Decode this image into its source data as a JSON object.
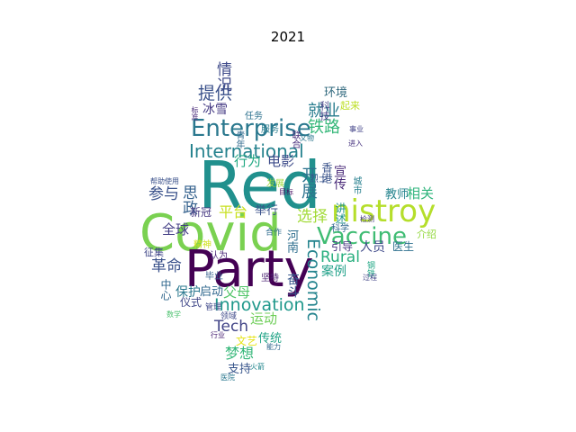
{
  "title": "2021",
  "words": [
    {
      "text": "Red",
      "color": "#21908d"
    },
    {
      "text": "Covid",
      "color": "#7ad151"
    },
    {
      "text": "Party",
      "color": "#440154"
    },
    {
      "text": "nistroy",
      "color": "#b5de2b"
    },
    {
      "text": "Enterprise",
      "color": "#2a788e"
    },
    {
      "text": "Vaccine",
      "color": "#3fbc73"
    },
    {
      "text": "International",
      "color": "#26828e"
    },
    {
      "text": "Innovation",
      "color": "#1f988b"
    },
    {
      "text": "Economic",
      "color": "#25848e"
    },
    {
      "text": "Tech",
      "color": "#414487"
    },
    {
      "text": "Rural",
      "color": "#29af7f"
    },
    {
      "text": "提供",
      "color": "#3b528b"
    },
    {
      "text": "情况",
      "color": "#3e4a89"
    },
    {
      "text": "就业",
      "color": "#287d8e"
    },
    {
      "text": "铁路",
      "color": "#35b779"
    },
    {
      "text": "环境",
      "color": "#30697e"
    },
    {
      "text": "冰雪",
      "color": "#443a83"
    },
    {
      "text": "电影",
      "color": "#3e4c8a"
    },
    {
      "text": "行为",
      "color": "#23a983"
    },
    {
      "text": "开展",
      "color": "#2c728e"
    },
    {
      "text": "宣传",
      "color": "#482878"
    },
    {
      "text": "选择",
      "color": "#a2da37"
    },
    {
      "text": "平台",
      "color": "#c8e020"
    },
    {
      "text": "举行",
      "color": "#3b528b"
    },
    {
      "text": "参与",
      "color": "#3b528b"
    },
    {
      "text": "思政",
      "color": "#34618d"
    },
    {
      "text": "新冠",
      "color": "#453781"
    },
    {
      "text": "全球",
      "color": "#433e85"
    },
    {
      "text": "革命",
      "color": "#3b528b"
    },
    {
      "text": "保护",
      "color": "#2a788e"
    },
    {
      "text": "启动",
      "color": "#31688e"
    },
    {
      "text": "父母",
      "color": "#52c569"
    },
    {
      "text": "运动",
      "color": "#6ece58"
    },
    {
      "text": "奋斗",
      "color": "#38588c"
    },
    {
      "text": "相关",
      "color": "#2fb47c"
    },
    {
      "text": "教师",
      "color": "#25848e"
    },
    {
      "text": "人员",
      "color": "#3e4989"
    },
    {
      "text": "医生",
      "color": "#2d708e"
    },
    {
      "text": "介绍",
      "color": "#94d840"
    },
    {
      "text": "案例",
      "color": "#1fa088"
    },
    {
      "text": "引导",
      "color": "#463480"
    },
    {
      "text": "梦想",
      "color": "#35b779"
    },
    {
      "text": "传统",
      "color": "#20a386"
    },
    {
      "text": "支持",
      "color": "#39568c"
    },
    {
      "text": "仪式",
      "color": "#3f4788"
    },
    {
      "text": "中心",
      "color": "#31688e"
    },
    {
      "text": "河南",
      "color": "#2e6e8e"
    },
    {
      "text": "讲述",
      "color": "#20928c"
    },
    {
      "text": "香港",
      "color": "#3a538b"
    },
    {
      "text": "科技",
      "color": "#433d84"
    },
    {
      "text": "起来",
      "color": "#bddf26"
    },
    {
      "text": "城市",
      "color": "#277f8e"
    },
    {
      "text": "征集",
      "color": "#404688"
    },
    {
      "text": "任务",
      "color": "#2c718e"
    },
    {
      "text": "毕业",
      "color": "#35608d"
    },
    {
      "text": "认为",
      "color": "#482576"
    },
    {
      "text": "坚持",
      "color": "#481f70"
    },
    {
      "text": "合作",
      "color": "#2f6c8e"
    },
    {
      "text": "目标",
      "color": "#471063"
    },
    {
      "text": "帮助",
      "color": "#3b518b"
    },
    {
      "text": "使用",
      "color": "#3b528b"
    },
    {
      "text": "文艺",
      "color": "#e5e419"
    },
    {
      "text": "科学",
      "color": "#31678e"
    },
    {
      "text": "烈士",
      "color": "#39558c"
    },
    {
      "text": "联合",
      "color": "#472d7b"
    },
    {
      "text": "事业",
      "color": "#414287"
    },
    {
      "text": "文物",
      "color": "#2a768e"
    },
    {
      "text": "领域",
      "color": "#3e4a89"
    },
    {
      "text": "行业",
      "color": "#482173"
    },
    {
      "text": "能力",
      "color": "#31678e"
    },
    {
      "text": "医院",
      "color": "#2a778e"
    },
    {
      "text": "火箭",
      "color": "#24878e"
    },
    {
      "text": "管理",
      "color": "#3f4889"
    },
    {
      "text": "标准",
      "color": "#482979"
    },
    {
      "text": "数学",
      "color": "#4ac16d"
    },
    {
      "text": "钢铁",
      "color": "#22a785"
    },
    {
      "text": "过程",
      "color": "#414487"
    },
    {
      "text": "检测",
      "color": "#453882"
    },
    {
      "text": "进入",
      "color": "#46337f"
    },
    {
      "text": "发展",
      "color": "#9fda3a"
    },
    {
      "text": "精神",
      "color": "#d0e11c"
    },
    {
      "text": "服务",
      "color": "#287c8e"
    },
    {
      "text": "青年",
      "color": "#306a8e"
    }
  ]
}
